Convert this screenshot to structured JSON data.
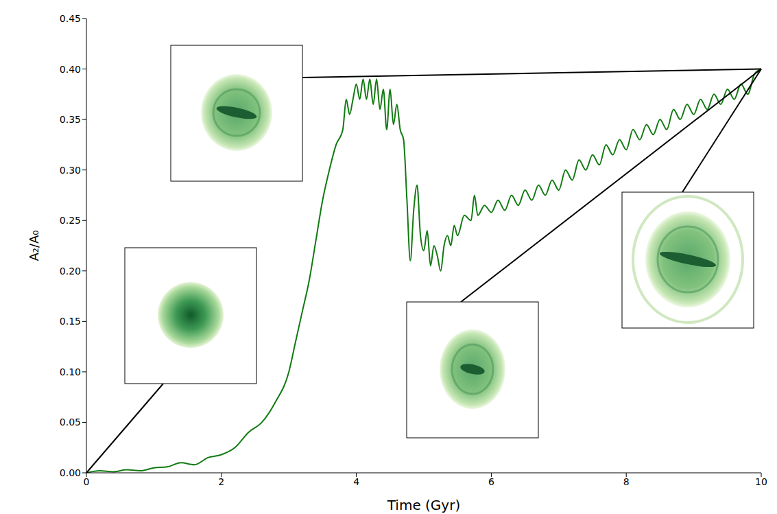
{
  "chart_data": {
    "type": "line",
    "x_label": "Time (Gyr)",
    "y_label": "A₂/A₀",
    "color": "#117a11",
    "grid": false,
    "xlim": [
      0,
      10
    ],
    "xticks": [
      0,
      2,
      4,
      6,
      8,
      10
    ],
    "ylim": [
      0,
      0.45
    ],
    "yticks": [
      {
        "value": 0,
        "label": "0.00"
      },
      {
        "value": 0.05,
        "label": "0.05"
      },
      {
        "value": 0.1,
        "label": "0.10"
      },
      {
        "value": 0.15,
        "label": "0.15"
      },
      {
        "value": 0.2,
        "label": "0.20"
      },
      {
        "value": 0.25,
        "label": "0.25"
      },
      {
        "value": 0.3,
        "label": "0.30"
      },
      {
        "value": 0.35,
        "label": "0.35"
      },
      {
        "value": 0.4,
        "label": "0.40"
      },
      {
        "value": 0.45,
        "label": "0.45"
      }
    ],
    "x": [
      0,
      0.2,
      0.4,
      0.6,
      0.8,
      1.0,
      1.2,
      1.4,
      1.6,
      1.8,
      2.0,
      2.2,
      2.4,
      2.6,
      2.8,
      3.0,
      3.1,
      3.2,
      3.3,
      3.4,
      3.5,
      3.6,
      3.7,
      3.8,
      3.85,
      3.9,
      3.95,
      4.0,
      4.05,
      4.1,
      4.15,
      4.2,
      4.25,
      4.3,
      4.35,
      4.4,
      4.45,
      4.5,
      4.55,
      4.6,
      4.65,
      4.7,
      4.75,
      4.8,
      4.85,
      4.9,
      4.95,
      5.0,
      5.05,
      5.1,
      5.15,
      5.2,
      5.25,
      5.3,
      5.35,
      5.4,
      5.45,
      5.5,
      5.6,
      5.7,
      5.75,
      5.8,
      5.9,
      6.0,
      6.1,
      6.2,
      6.3,
      6.4,
      6.5,
      6.6,
      6.7,
      6.8,
      6.9,
      7.0,
      7.1,
      7.2,
      7.3,
      7.4,
      7.5,
      7.6,
      7.7,
      7.8,
      7.9,
      8.0,
      8.1,
      8.2,
      8.3,
      8.4,
      8.5,
      8.6,
      8.7,
      8.8,
      8.9,
      9.0,
      9.1,
      9.2,
      9.3,
      9.4,
      9.5,
      9.6,
      9.7,
      9.8,
      9.9,
      10.0
    ],
    "values": [
      0,
      0.002,
      0.001,
      0.003,
      0.002,
      0.005,
      0.006,
      0.01,
      0.008,
      0.015,
      0.018,
      0.025,
      0.04,
      0.05,
      0.07,
      0.1,
      0.13,
      0.16,
      0.19,
      0.23,
      0.27,
      0.3,
      0.325,
      0.34,
      0.37,
      0.355,
      0.37,
      0.385,
      0.37,
      0.39,
      0.37,
      0.39,
      0.365,
      0.39,
      0.36,
      0.38,
      0.34,
      0.38,
      0.345,
      0.365,
      0.34,
      0.33,
      0.27,
      0.21,
      0.26,
      0.285,
      0.235,
      0.22,
      0.24,
      0.205,
      0.225,
      0.215,
      0.2,
      0.225,
      0.235,
      0.225,
      0.245,
      0.235,
      0.255,
      0.25,
      0.275,
      0.255,
      0.265,
      0.258,
      0.27,
      0.26,
      0.275,
      0.265,
      0.28,
      0.27,
      0.285,
      0.275,
      0.29,
      0.28,
      0.3,
      0.29,
      0.31,
      0.3,
      0.315,
      0.305,
      0.325,
      0.315,
      0.33,
      0.32,
      0.34,
      0.33,
      0.345,
      0.335,
      0.35,
      0.34,
      0.36,
      0.35,
      0.365,
      0.355,
      0.37,
      0.36,
      0.375,
      0.365,
      0.38,
      0.37,
      0.385,
      0.375,
      0.395,
      0.4
    ]
  }
}
